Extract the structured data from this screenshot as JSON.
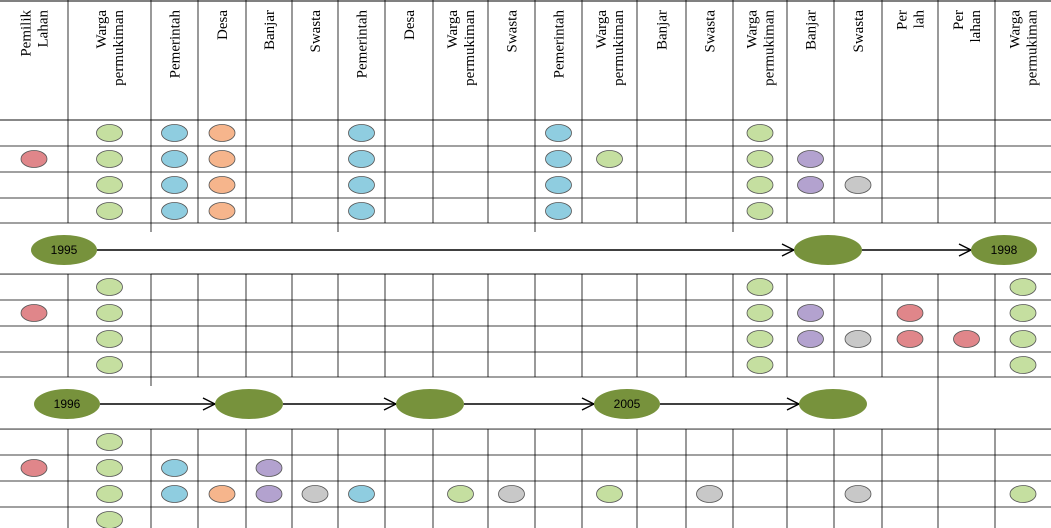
{
  "headers": [
    [
      "Pemilik",
      "Lahan"
    ],
    [
      "Warga",
      "permukiman"
    ],
    [
      "Pemerintah"
    ],
    [
      "Desa"
    ],
    [
      "Banjar"
    ],
    [
      "Swasta"
    ],
    [
      "Pemerintah"
    ],
    [
      "Desa"
    ],
    [
      "Warga",
      "permukiman"
    ],
    [
      "Swasta"
    ],
    [
      "Pemerintah"
    ],
    [
      "Warga",
      "permukiman"
    ],
    [
      "Banjar"
    ],
    [
      "Swasta"
    ],
    [
      "Warga",
      "permukiman"
    ],
    [
      "Banjar"
    ],
    [
      "Swasta"
    ],
    [
      "Per",
      "lah"
    ],
    [
      "Per",
      "lahan"
    ],
    [
      "Warga",
      "permukiman"
    ]
  ],
  "colors": {
    "pemilik_lahan": "#e0868a",
    "warga": "#c5dfa0",
    "pemerintah": "#8fcde0",
    "desa": "#f6b58c",
    "banjar": "#b3a2cf",
    "swasta": "#c8c8c8",
    "timeline": "#77923c",
    "grid": "#000000"
  },
  "blocks": [
    {
      "rows": [
        [
          null,
          "warga",
          "pemerintah",
          "desa",
          null,
          null,
          "pemerintah",
          null,
          null,
          null,
          "pemerintah",
          null,
          null,
          null,
          "warga",
          null,
          null,
          null,
          null,
          null
        ],
        [
          "pemilik_lahan",
          "warga",
          "pemerintah",
          "desa",
          null,
          null,
          "pemerintah",
          null,
          null,
          null,
          "pemerintah",
          "warga",
          null,
          null,
          "warga",
          "banjar",
          null,
          null,
          null,
          null
        ],
        [
          null,
          "warga",
          "pemerintah",
          "desa",
          null,
          null,
          "pemerintah",
          null,
          null,
          null,
          "pemerintah",
          null,
          null,
          null,
          "warga",
          "banjar",
          "swasta",
          null,
          null,
          null
        ],
        [
          null,
          "warga",
          "pemerintah",
          "desa",
          null,
          null,
          "pemerintah",
          null,
          null,
          null,
          "pemerintah",
          null,
          null,
          null,
          "warga",
          null,
          null,
          null,
          null,
          null
        ]
      ]
    },
    {
      "rows": [
        [
          null,
          "warga",
          null,
          null,
          null,
          null,
          null,
          null,
          null,
          null,
          null,
          null,
          null,
          null,
          "warga",
          null,
          null,
          null,
          null,
          "warga"
        ],
        [
          "pemilik_lahan",
          "warga",
          null,
          null,
          null,
          null,
          null,
          null,
          null,
          null,
          null,
          null,
          null,
          null,
          "warga",
          "banjar",
          null,
          "pemilik_lahan",
          null,
          "warga"
        ],
        [
          null,
          "warga",
          null,
          null,
          null,
          null,
          null,
          null,
          null,
          null,
          null,
          null,
          null,
          null,
          "warga",
          "banjar",
          "swasta",
          "pemilik_lahan",
          "pemilik_lahan",
          "warga"
        ],
        [
          null,
          "warga",
          null,
          null,
          null,
          null,
          null,
          null,
          null,
          null,
          null,
          null,
          null,
          null,
          "warga",
          null,
          null,
          null,
          null,
          "warga"
        ]
      ]
    },
    {
      "rows": [
        [
          null,
          "warga",
          null,
          null,
          null,
          null,
          null,
          null,
          null,
          null,
          null,
          null,
          null,
          null,
          null,
          null,
          null,
          null,
          null,
          null
        ],
        [
          "pemilik_lahan",
          "warga",
          "pemerintah",
          null,
          "banjar",
          null,
          null,
          null,
          null,
          null,
          null,
          null,
          null,
          null,
          null,
          null,
          null,
          null,
          null,
          null
        ],
        [
          null,
          "warga",
          "pemerintah",
          "desa",
          "banjar",
          "swasta",
          "pemerintah",
          null,
          "warga",
          "swasta",
          null,
          "warga",
          null,
          "swasta",
          null,
          null,
          "swasta",
          null,
          null,
          "warga"
        ],
        [
          null,
          "warga",
          null,
          null,
          null,
          null,
          null,
          null,
          null,
          null,
          null,
          null,
          null,
          null,
          null,
          null,
          null,
          null,
          null,
          null
        ]
      ]
    }
  ],
  "timelines": [
    {
      "nodes": [
        "1995",
        "",
        "1998"
      ]
    },
    {
      "nodes": [
        "1996",
        "",
        "",
        "2005",
        ""
      ]
    }
  ]
}
